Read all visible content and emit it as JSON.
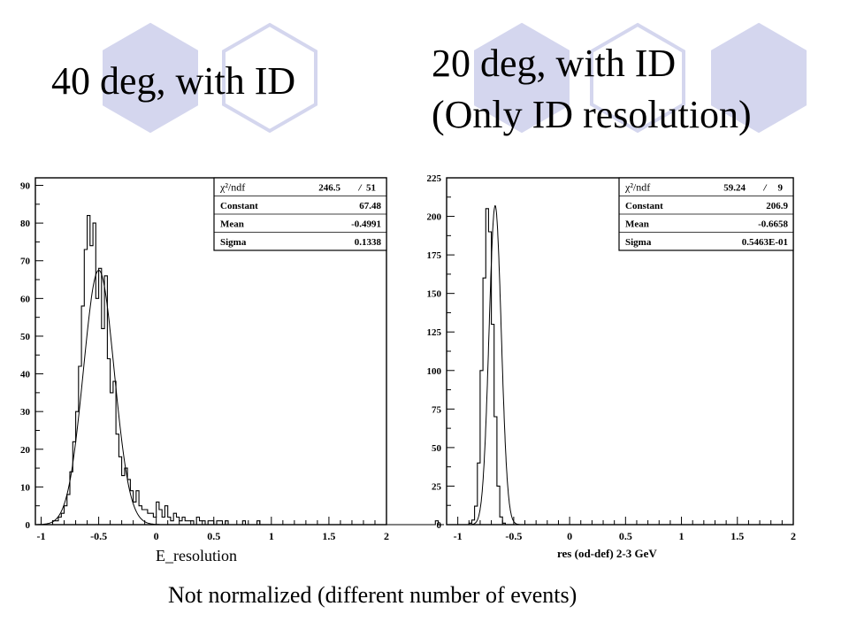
{
  "slide": {
    "title_left": "40 deg, with ID",
    "title_right_line1": "20 deg, with ID",
    "title_right_line2": "(Only ID resolution)",
    "caption": "Not normalized (different number of events)",
    "colors": {
      "hexagon_fill": "#d4d6ee",
      "hexagon_stroke": "#d4d6ee",
      "background": "#ffffff"
    }
  },
  "chart_data": [
    {
      "type": "histogram",
      "title": "",
      "xlabel": "E_resolution",
      "ylabel": "",
      "xlim": [
        -1.05,
        2.0
      ],
      "ylim": [
        0,
        92
      ],
      "x_ticks": [
        "-1",
        "-0.5",
        "0",
        "0.5",
        "1",
        "1.5",
        "2"
      ],
      "x_tick_values": [
        -1,
        -0.5,
        0,
        0.5,
        1,
        1.5,
        2
      ],
      "y_ticks": [
        "0",
        "10",
        "20",
        "30",
        "40",
        "50",
        "60",
        "70",
        "80",
        "90"
      ],
      "y_tick_values": [
        0,
        10,
        20,
        30,
        40,
        50,
        60,
        70,
        80,
        90
      ],
      "bin_start": -1.0,
      "bin_width": 0.025,
      "counts": [
        0,
        0,
        0,
        0,
        1,
        1,
        2,
        3,
        5,
        8,
        14,
        22,
        30,
        42,
        58,
        73,
        82,
        74,
        80,
        60,
        68,
        52,
        66,
        44,
        35,
        38,
        24,
        18,
        13,
        15,
        12,
        9,
        6,
        9,
        5,
        4,
        4,
        3,
        3,
        2,
        6,
        4,
        2,
        5,
        2,
        1,
        3,
        2,
        1,
        2,
        1,
        1,
        1,
        0,
        2,
        1,
        1,
        0,
        1,
        1,
        0,
        1,
        1,
        0,
        1,
        0,
        0,
        0,
        0,
        0,
        1,
        0,
        0,
        0,
        0,
        1,
        0,
        0,
        0,
        0,
        0,
        0,
        0,
        0,
        0,
        0,
        0,
        0,
        0,
        0,
        0,
        0,
        0,
        0,
        0,
        0,
        0,
        0,
        0,
        0,
        0,
        0,
        0,
        0,
        0,
        0,
        0,
        0,
        0,
        0,
        0,
        0,
        0,
        0,
        0,
        0,
        0,
        0,
        0,
        0,
        0,
        0,
        0,
        0,
        0,
        0,
        0,
        0,
        0,
        0,
        0,
        0,
        0,
        0,
        0,
        0,
        0,
        1,
        0,
        0
      ],
      "fit": {
        "type": "gaussian",
        "constant": 67.48,
        "mean": -0.4991,
        "sigma": 0.1338
      },
      "stats": [
        {
          "label": "χ²/ndf",
          "value": "246.5",
          "sep": "/",
          "extra": "51"
        },
        {
          "label": "Constant",
          "value": "67.48"
        },
        {
          "label": "Mean",
          "value": "-0.4991"
        },
        {
          "label": "Sigma",
          "value": "0.1338"
        }
      ]
    },
    {
      "type": "histogram",
      "title": "",
      "xlabel": "res (od-def) 2-3 GeV",
      "ylabel": "",
      "xlim": [
        -1.1,
        2.0
      ],
      "ylim": [
        0,
        225
      ],
      "x_ticks": [
        "-1",
        "-0.5",
        "0",
        "0.5",
        "1",
        "1.5",
        "2"
      ],
      "x_tick_values": [
        -1,
        -0.5,
        0,
        0.5,
        1,
        1.5,
        2
      ],
      "y_ticks": [
        "0",
        "25",
        "50",
        "75",
        "100",
        "125",
        "150",
        "175",
        "200",
        "225"
      ],
      "y_tick_values": [
        0,
        25,
        50,
        75,
        100,
        125,
        150,
        175,
        200,
        225
      ],
      "bin_start": -1.0,
      "bin_width": 0.025,
      "counts": [
        0,
        0,
        0,
        0,
        1,
        3,
        12,
        40,
        100,
        160,
        205,
        190,
        130,
        70,
        25,
        5,
        1,
        0,
        0,
        0
      ],
      "fit": {
        "type": "gaussian",
        "constant": 206.9,
        "mean": -0.6658,
        "sigma": 0.05463
      },
      "stats": [
        {
          "label": "χ²/ndf",
          "value": "59.24",
          "sep": "/",
          "extra": "9"
        },
        {
          "label": "Constant",
          "value": "206.9"
        },
        {
          "label": "Mean",
          "value": "-0.6658"
        },
        {
          "label": "Sigma",
          "value": "0.5463E-01"
        }
      ]
    }
  ]
}
